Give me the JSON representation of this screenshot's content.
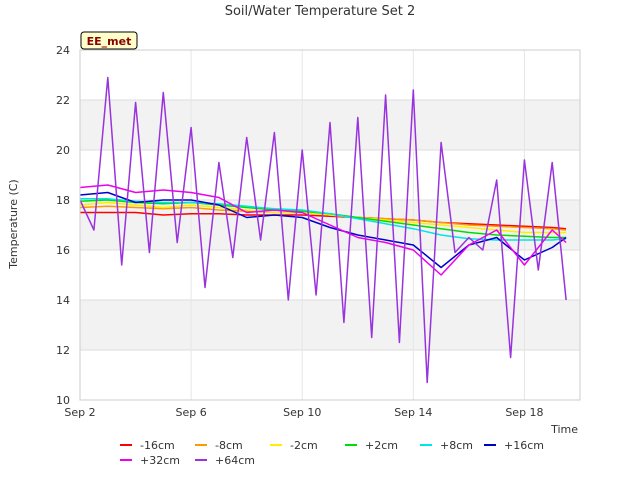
{
  "chart_data": {
    "type": "line",
    "title": "Soil/Water Temperature Set 2",
    "xlabel": "Time",
    "ylabel": "Temperature (C)",
    "badge": "EE_met",
    "xlim": [
      "2023-09-02",
      "2023-09-20"
    ],
    "ylim": [
      10,
      24
    ],
    "x_ticks": [
      {
        "date": "2023-09-02",
        "label": "Sep 2"
      },
      {
        "date": "2023-09-06",
        "label": "Sep 6"
      },
      {
        "date": "2023-09-10",
        "label": "Sep 10"
      },
      {
        "date": "2023-09-14",
        "label": "Sep 14"
      },
      {
        "date": "2023-09-18",
        "label": "Sep 18"
      }
    ],
    "y_ticks": [
      10,
      12,
      14,
      16,
      18,
      20,
      22,
      24
    ],
    "banded_background": true,
    "legend_position": "bottom",
    "series": [
      {
        "name": "-16cm",
        "color": "#ff0000",
        "x": [
          "2023-09-02",
          "2023-09-03",
          "2023-09-04",
          "2023-09-05",
          "2023-09-06",
          "2023-09-07",
          "2023-09-08",
          "2023-09-09",
          "2023-09-10",
          "2023-09-11",
          "2023-09-12",
          "2023-09-13",
          "2023-09-14",
          "2023-09-15",
          "2023-09-16",
          "2023-09-17",
          "2023-09-18",
          "2023-09-19",
          "2023-09-19T12:00"
        ],
        "y": [
          17.5,
          17.5,
          17.5,
          17.4,
          17.45,
          17.45,
          17.4,
          17.4,
          17.4,
          17.35,
          17.3,
          17.25,
          17.2,
          17.1,
          17.05,
          17.0,
          16.95,
          16.9,
          16.85
        ]
      },
      {
        "name": "-8cm",
        "color": "#ff9900",
        "x": [
          "2023-09-02",
          "2023-09-03",
          "2023-09-04",
          "2023-09-05",
          "2023-09-06",
          "2023-09-07",
          "2023-09-08",
          "2023-09-09",
          "2023-09-10",
          "2023-09-11",
          "2023-09-12",
          "2023-09-13",
          "2023-09-14",
          "2023-09-15",
          "2023-09-16",
          "2023-09-17",
          "2023-09-18",
          "2023-09-19",
          "2023-09-19T12:00"
        ],
        "y": [
          17.7,
          17.75,
          17.7,
          17.65,
          17.7,
          17.6,
          17.55,
          17.5,
          17.5,
          17.4,
          17.3,
          17.25,
          17.2,
          17.1,
          17.0,
          16.95,
          16.9,
          16.85,
          16.8
        ]
      },
      {
        "name": "-2cm",
        "color": "#ffee00",
        "x": [
          "2023-09-02",
          "2023-09-03",
          "2023-09-04",
          "2023-09-05",
          "2023-09-06",
          "2023-09-07",
          "2023-09-08",
          "2023-09-09",
          "2023-09-10",
          "2023-09-11",
          "2023-09-12",
          "2023-09-13",
          "2023-09-14",
          "2023-09-15",
          "2023-09-16",
          "2023-09-17",
          "2023-09-18",
          "2023-09-19",
          "2023-09-19T12:00"
        ],
        "y": [
          17.8,
          17.9,
          17.8,
          17.7,
          17.8,
          17.7,
          17.6,
          17.5,
          17.5,
          17.4,
          17.3,
          17.2,
          17.1,
          17.0,
          16.9,
          16.8,
          16.7,
          16.7,
          16.7
        ]
      },
      {
        "name": "+2cm",
        "color": "#00dd00",
        "x": [
          "2023-09-02",
          "2023-09-03",
          "2023-09-04",
          "2023-09-05",
          "2023-09-06",
          "2023-09-07",
          "2023-09-08",
          "2023-09-09",
          "2023-09-10",
          "2023-09-11",
          "2023-09-12",
          "2023-09-13",
          "2023-09-14",
          "2023-09-15",
          "2023-09-16",
          "2023-09-17",
          "2023-09-18",
          "2023-09-19",
          "2023-09-19T12:00"
        ],
        "y": [
          17.95,
          18.0,
          17.9,
          17.85,
          17.9,
          17.8,
          17.7,
          17.6,
          17.55,
          17.45,
          17.3,
          17.15,
          17.0,
          16.85,
          16.7,
          16.6,
          16.55,
          16.5,
          16.5
        ]
      },
      {
        "name": "+8cm",
        "color": "#00e5e5",
        "x": [
          "2023-09-02",
          "2023-09-03",
          "2023-09-04",
          "2023-09-05",
          "2023-09-06",
          "2023-09-07",
          "2023-09-08",
          "2023-09-09",
          "2023-09-10",
          "2023-09-11",
          "2023-09-12",
          "2023-09-13",
          "2023-09-14",
          "2023-09-15",
          "2023-09-16",
          "2023-09-17",
          "2023-09-18",
          "2023-09-19",
          "2023-09-19T12:00"
        ],
        "y": [
          18.05,
          18.05,
          17.95,
          17.9,
          17.9,
          17.85,
          17.75,
          17.65,
          17.6,
          17.45,
          17.25,
          17.05,
          16.85,
          16.6,
          16.45,
          16.4,
          16.4,
          16.4,
          16.45
        ]
      },
      {
        "name": "+16cm",
        "color": "#0000cc",
        "x": [
          "2023-09-02",
          "2023-09-03",
          "2023-09-04",
          "2023-09-05",
          "2023-09-06",
          "2023-09-07",
          "2023-09-08",
          "2023-09-09",
          "2023-09-10",
          "2023-09-11",
          "2023-09-12",
          "2023-09-13",
          "2023-09-14",
          "2023-09-15",
          "2023-09-16",
          "2023-09-17",
          "2023-09-18",
          "2023-09-19",
          "2023-09-19T12:00"
        ],
        "y": [
          18.2,
          18.3,
          17.9,
          18.0,
          18.0,
          17.8,
          17.3,
          17.4,
          17.3,
          16.9,
          16.6,
          16.4,
          16.2,
          15.3,
          16.2,
          16.5,
          15.6,
          16.1,
          16.5
        ]
      },
      {
        "name": "+32cm",
        "color": "#ee00ee",
        "x": [
          "2023-09-02",
          "2023-09-03",
          "2023-09-04",
          "2023-09-05",
          "2023-09-06",
          "2023-09-07",
          "2023-09-08",
          "2023-09-09",
          "2023-09-10",
          "2023-09-11",
          "2023-09-12",
          "2023-09-13",
          "2023-09-14",
          "2023-09-15",
          "2023-09-16",
          "2023-09-17",
          "2023-09-18",
          "2023-09-19",
          "2023-09-19T12:00"
        ],
        "y": [
          18.5,
          18.6,
          18.3,
          18.4,
          18.3,
          18.1,
          17.5,
          17.6,
          17.5,
          17.0,
          16.5,
          16.3,
          16.0,
          15.0,
          16.2,
          16.8,
          15.4,
          16.8,
          16.3
        ]
      },
      {
        "name": "+64cm",
        "color": "#9933dd",
        "x": [
          "2023-09-02",
          "2023-09-02T12:00",
          "2023-09-03",
          "2023-09-03T12:00",
          "2023-09-04",
          "2023-09-04T12:00",
          "2023-09-05",
          "2023-09-05T12:00",
          "2023-09-06",
          "2023-09-06T12:00",
          "2023-09-07",
          "2023-09-07T12:00",
          "2023-09-08",
          "2023-09-08T12:00",
          "2023-09-09",
          "2023-09-09T12:00",
          "2023-09-10",
          "2023-09-10T12:00",
          "2023-09-11",
          "2023-09-11T12:00",
          "2023-09-12",
          "2023-09-12T12:00",
          "2023-09-13",
          "2023-09-13T12:00",
          "2023-09-14",
          "2023-09-14T12:00",
          "2023-09-15",
          "2023-09-15T12:00",
          "2023-09-16",
          "2023-09-16T12:00",
          "2023-09-17",
          "2023-09-17T12:00",
          "2023-09-18",
          "2023-09-18T12:00",
          "2023-09-19",
          "2023-09-19T12:00"
        ],
        "y": [
          18.0,
          16.8,
          22.9,
          15.4,
          21.9,
          15.9,
          22.3,
          16.3,
          20.9,
          14.5,
          19.5,
          15.7,
          20.5,
          16.4,
          20.7,
          14.0,
          20.0,
          14.2,
          21.1,
          13.1,
          21.3,
          12.5,
          22.2,
          12.3,
          22.4,
          10.7,
          20.3,
          15.9,
          16.5,
          16.0,
          18.8,
          11.7,
          19.6,
          15.2,
          19.5,
          14.0
        ]
      }
    ]
  }
}
